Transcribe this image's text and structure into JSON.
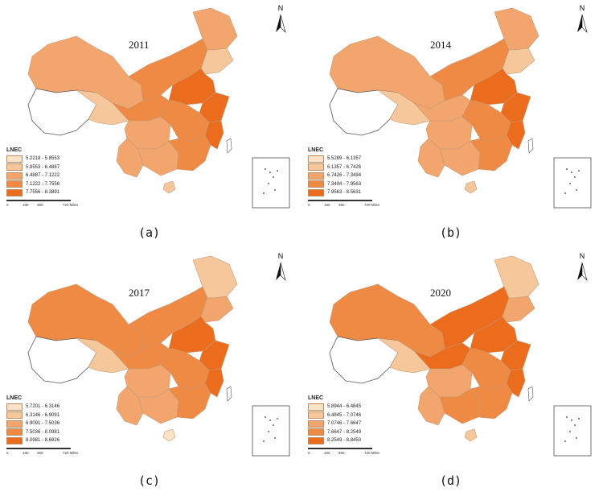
{
  "legend_title": "LNEC",
  "north_label": "N",
  "scale_labels": [
    "0",
    "180",
    "360",
    "720 Miles"
  ],
  "palette": [
    "#fbe3c8",
    "#f7c79c",
    "#f3a56e",
    "#ef8a45",
    "#ea6c1c"
  ],
  "panels": [
    {
      "year": "2011",
      "caption": "(a)",
      "classes": [
        "5.2218 - 5.8553",
        "5.8553 - 6.4887",
        "6.4887 - 7.1222",
        "7.1222 - 7.7556",
        "7.7556 - 8.3891"
      ]
    },
    {
      "year": "2014",
      "caption": "(b)",
      "classes": [
        "5.5289 - 6.1357",
        "6.1357 - 6.7426",
        "6.7426 - 7.3494",
        "7.3494 - 7.9563",
        "7.9563 - 8.5631"
      ]
    },
    {
      "year": "2017",
      "caption": "(c)",
      "classes": [
        "5.7201 - 6.3146",
        "6.3146 - 6.9091",
        "6.9091 - 7.5036",
        "7.5036 - 8.0981",
        "8.0981 - 8.6926"
      ]
    },
    {
      "year": "2020",
      "caption": "(d)",
      "classes": [
        "5.8944 - 6.4845",
        "6.4845 - 7.0746",
        "7.0746 - 7.6647",
        "7.6647 - 8.2549",
        "8.2549 - 8.8450"
      ]
    }
  ]
}
